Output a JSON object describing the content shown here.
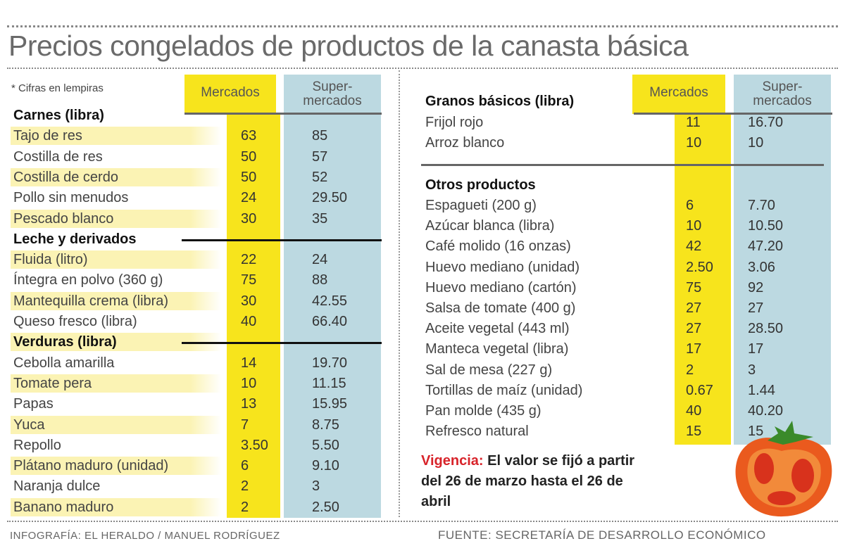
{
  "title": "Precios congelados de productos de la canasta básica",
  "note": "* Cifras en lempiras",
  "columns": {
    "mercados": "Mercados",
    "super_line1": "Super-",
    "super_line2": "mercados"
  },
  "colors": {
    "mercados": "#f7e41c",
    "supermercados": "#bcd9e1",
    "highlight": "#fbf3b4",
    "vigencia": "#d8232a"
  },
  "left_sections": [
    {
      "heading": "Carnes (libra)",
      "items": [
        {
          "name": "Tajo de res",
          "mercados": "63",
          "supermercados": "85"
        },
        {
          "name": "Costilla de res",
          "mercados": "50",
          "supermercados": "57"
        },
        {
          "name": "Costilla de cerdo",
          "mercados": "50",
          "supermercados": "52"
        },
        {
          "name": "Pollo sin menudos",
          "mercados": "24",
          "supermercados": "29.50"
        },
        {
          "name": "Pescado blanco",
          "mercados": "30",
          "supermercados": "35"
        }
      ]
    },
    {
      "heading": "Leche y derivados",
      "items": [
        {
          "name": "Fluida (litro)",
          "mercados": "22",
          "supermercados": "24"
        },
        {
          "name": "Íntegra en polvo (360 g)",
          "mercados": "75",
          "supermercados": "88"
        },
        {
          "name": "Mantequilla crema (libra)",
          "mercados": "30",
          "supermercados": "42.55"
        },
        {
          "name": "Queso fresco (libra)",
          "mercados": "40",
          "supermercados": "66.40"
        }
      ]
    },
    {
      "heading": "Verduras (libra)",
      "items": [
        {
          "name": "Cebolla amarilla",
          "mercados": "14",
          "supermercados": "19.70"
        },
        {
          "name": "Tomate pera",
          "mercados": "10",
          "supermercados": "11.15"
        },
        {
          "name": "Papas",
          "mercados": "13",
          "supermercados": "15.95"
        },
        {
          "name": "Yuca",
          "mercados": "7",
          "supermercados": "8.75"
        },
        {
          "name": "Repollo",
          "mercados": "3.50",
          "supermercados": "5.50"
        },
        {
          "name": "Plátano maduro (unidad)",
          "mercados": "6",
          "supermercados": "9.10"
        },
        {
          "name": "Naranja dulce",
          "mercados": "2",
          "supermercados": "3"
        },
        {
          "name": "Banano maduro",
          "mercados": "2",
          "supermercados": "2.50"
        }
      ]
    }
  ],
  "granos": {
    "heading": "Granos básicos (libra)",
    "items": [
      {
        "name": "Frijol rojo",
        "mercados": "11",
        "supermercados": "16.70"
      },
      {
        "name": "Arroz blanco",
        "mercados": "10",
        "supermercados": "10"
      }
    ]
  },
  "otros": {
    "heading": "Otros productos",
    "items": [
      {
        "name": "Espagueti (200 g)",
        "mercados": "6",
        "supermercados": "7.70"
      },
      {
        "name": "Azúcar blanca (libra)",
        "mercados": "10",
        "supermercados": "10.50"
      },
      {
        "name": "Café molido (16 onzas)",
        "mercados": "42",
        "supermercados": "47.20"
      },
      {
        "name": "Huevo mediano (unidad)",
        "mercados": "2.50",
        "supermercados": "3.06"
      },
      {
        "name": "Huevo mediano (cartón)",
        "mercados": "75",
        "supermercados": "92"
      },
      {
        "name": "Salsa de tomate (400 g)",
        "mercados": "27",
        "supermercados": "27"
      },
      {
        "name": "Aceite vegetal (443 ml)",
        "mercados": "27",
        "supermercados": "28.50"
      },
      {
        "name": "Manteca vegetal (libra)",
        "mercados": "17",
        "supermercados": "17"
      },
      {
        "name": "Sal de mesa (227 g)",
        "mercados": "2",
        "supermercados": "3"
      },
      {
        "name": "Tortillas de maíz (unidad)",
        "mercados": "0.67",
        "supermercados": "1.44"
      },
      {
        "name": "Pan molde (435 g)",
        "mercados": "40",
        "supermercados": "40.20"
      },
      {
        "name": "Refresco natural",
        "mercados": "15",
        "supermercados": "15"
      }
    ]
  },
  "vigencia": {
    "label": "Vigencia:",
    "text": " El valor se fijó a partir del 26 de marzo hasta el 26 de abril"
  },
  "footer": {
    "credit": "INFOGRAFÍA: EL HERALDO / MANUEL RODRÍGUEZ",
    "source": "FUENTE: SECRETARÍA DE DESARROLLO ECONÓMICO"
  },
  "illustration": "tomato-icon"
}
